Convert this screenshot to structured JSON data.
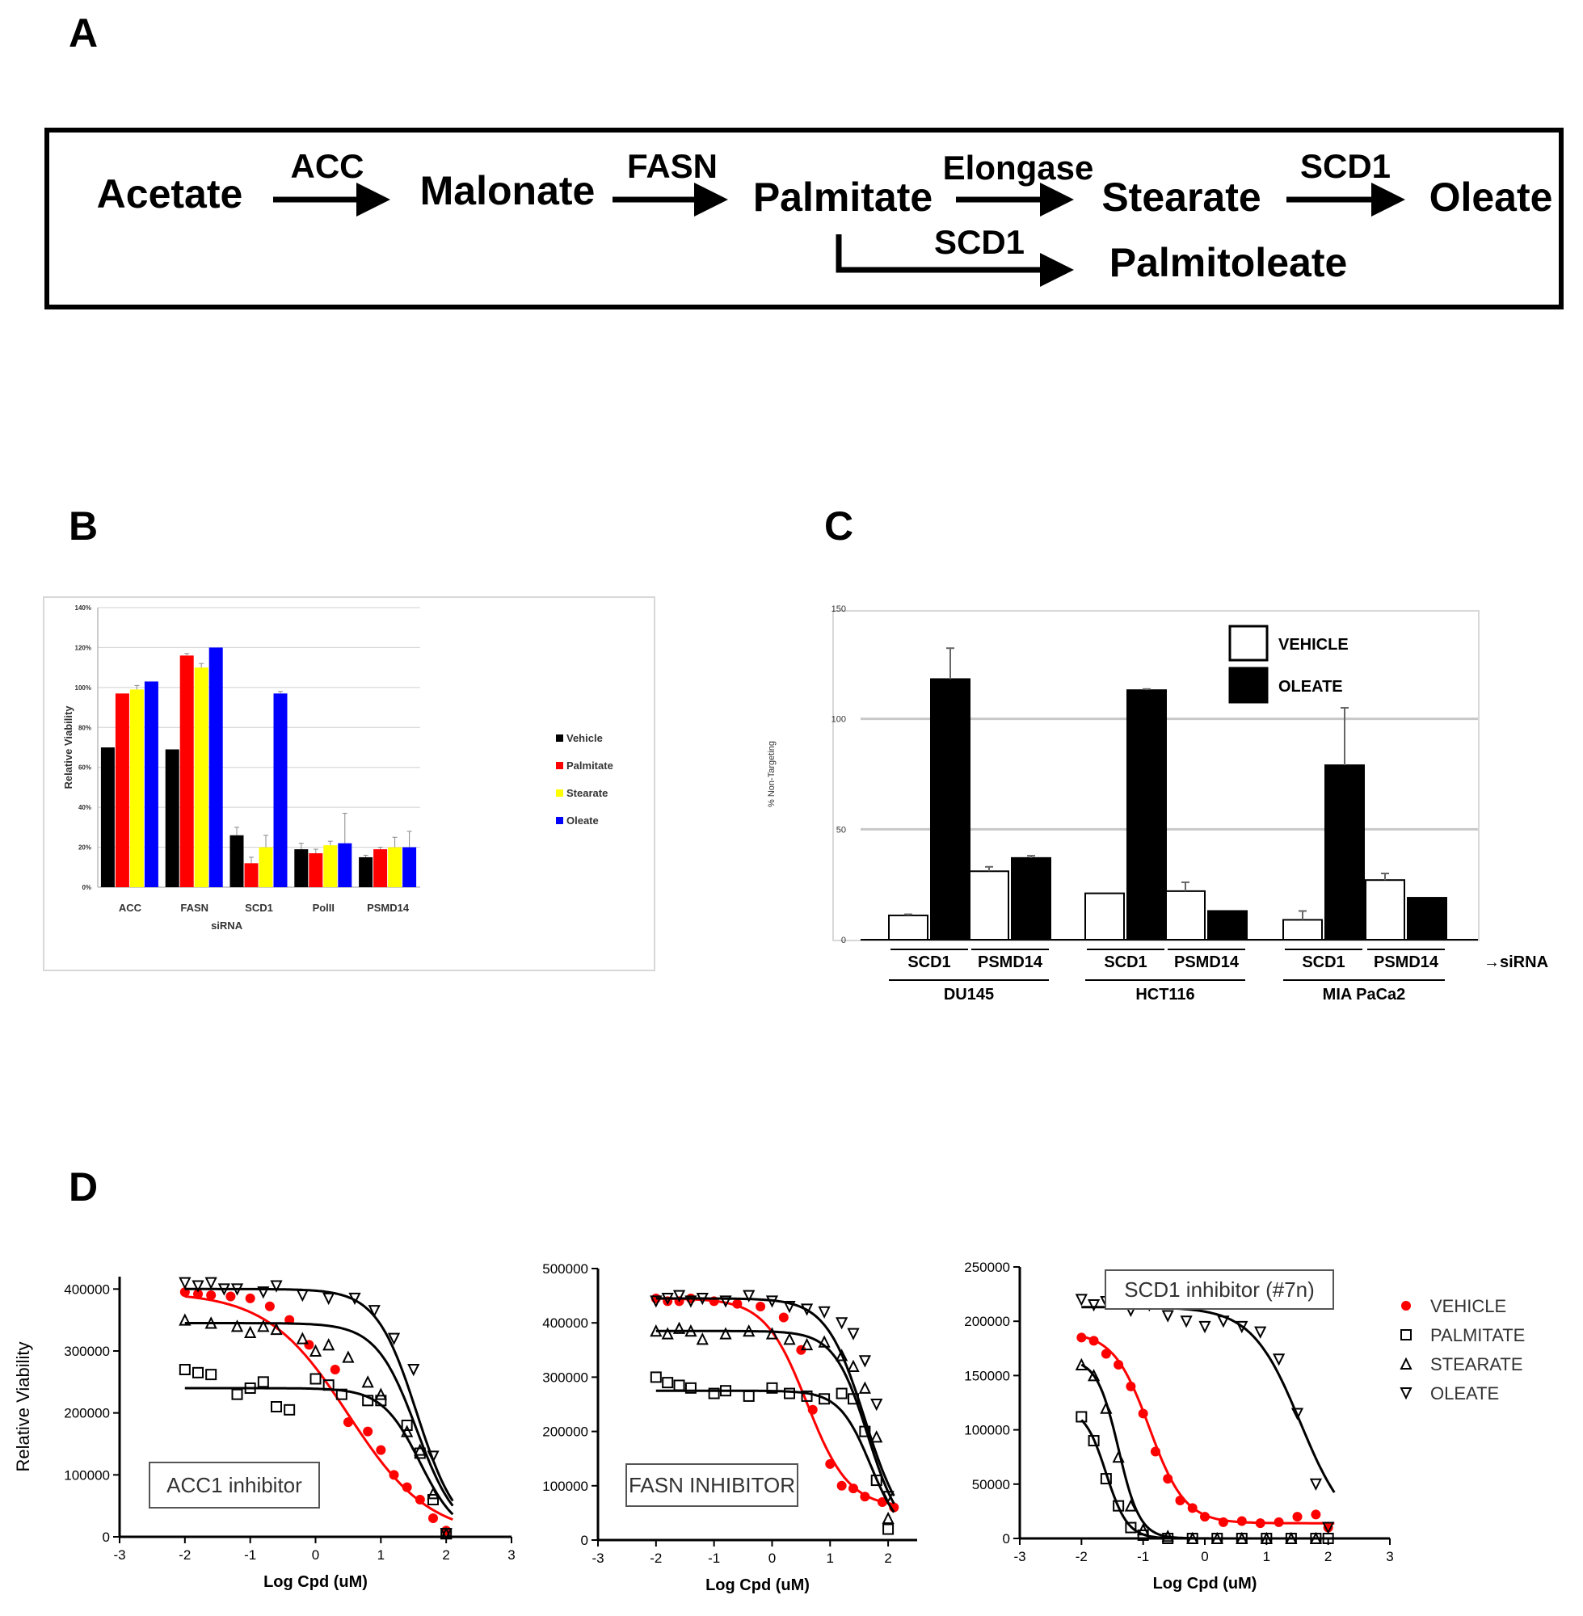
{
  "panel_labels": {
    "a": "A",
    "b": "B",
    "c": "C",
    "d": "D"
  },
  "pathway": {
    "substrates": [
      "Acetate",
      "Malonate",
      "Palmitate",
      "Stearate",
      "Oleate",
      "Palmitoleate"
    ],
    "enzymes": [
      "ACC",
      "FASN",
      "Elongase",
      "SCD1",
      "SCD1"
    ]
  },
  "chart_data": [
    {
      "panel": "B",
      "type": "bar",
      "xlabel": "siRNA",
      "ylabel": "Relative Viability",
      "ylim": [
        0,
        140
      ],
      "yticks": [
        "0%",
        "20%",
        "40%",
        "60%",
        "80%",
        "100%",
        "120%",
        "140%"
      ],
      "categories": [
        "ACC",
        "FASN",
        "SCD1",
        "PolII",
        "PSMD14"
      ],
      "legend_position": "right",
      "series": [
        {
          "name": "Vehicle",
          "color": "#000000",
          "values": [
            70,
            69,
            26,
            19,
            15
          ],
          "errors": [
            0,
            0,
            4,
            3,
            1
          ]
        },
        {
          "name": "Palmitate",
          "color": "#ff0000",
          "values": [
            97,
            116,
            12,
            17,
            19
          ],
          "errors": [
            0,
            1,
            3,
            2,
            1
          ]
        },
        {
          "name": "Stearate",
          "color": "#ffff00",
          "values": [
            99,
            110,
            20,
            21,
            20
          ],
          "errors": [
            2,
            2,
            6,
            2,
            5
          ]
        },
        {
          "name": "Oleate",
          "color": "#0000ff",
          "values": [
            103,
            120,
            97,
            22,
            20
          ],
          "errors": [
            0,
            0,
            1,
            15,
            8
          ]
        }
      ]
    },
    {
      "panel": "C",
      "type": "bar",
      "ylabel": "% Non-Targeting",
      "ylim": [
        0,
        150
      ],
      "yticks": [
        "0",
        "50",
        "100",
        "150"
      ],
      "sirna_labels": [
        "SCD1",
        "PSMD14",
        "SCD1",
        "PSMD14",
        "SCD1",
        "PSMD14"
      ],
      "sirna_arrow_label": "→siRNA",
      "cell_lines": [
        "DU145",
        "HCT116",
        "MIA PaCa2"
      ],
      "legend_position": "top-right",
      "series": [
        {
          "name": "VEHICLE",
          "color": "#ffffff",
          "values": [
            11,
            31,
            21,
            22,
            9,
            27
          ],
          "errors": [
            0.5,
            2,
            0,
            4,
            4,
            3
          ]
        },
        {
          "name": "OLEATE",
          "color": "#000000",
          "values": [
            118,
            37,
            113,
            13,
            79,
            19
          ],
          "errors": [
            14,
            1,
            0.5,
            0,
            26,
            0
          ]
        }
      ]
    },
    {
      "panel": "D1",
      "type": "scatter",
      "annotation": "ACC1 inhibitor",
      "xlabel": "Log Cpd (uM)",
      "ylabel": "Relative Viability",
      "xlim": [
        -3,
        3
      ],
      "ylim": [
        0,
        420000
      ],
      "xticks": [
        "-3",
        "-2",
        "-1",
        "0",
        "1",
        "2",
        "3"
      ],
      "yticks": [
        "0",
        "100000",
        "200000",
        "300000",
        "400000"
      ],
      "series": [
        {
          "name": "VEHICLE",
          "color": "#ff0000",
          "marker": "filled-circle",
          "x": [
            -2,
            -1.8,
            -1.6,
            -1.3,
            -1,
            -0.7,
            -0.4,
            -0.1,
            0.3,
            0.5,
            0.8,
            1.0,
            1.2,
            1.4,
            1.6,
            1.8,
            2.0
          ],
          "y": [
            395000,
            392000,
            390000,
            388000,
            385000,
            372000,
            350000,
            310000,
            270000,
            185000,
            170000,
            140000,
            100000,
            80000,
            60000,
            30000,
            10000
          ],
          "fit": {
            "top": 395000,
            "bottom": 0,
            "logEC50": 0.5,
            "hill": -0.7
          }
        },
        {
          "name": "PALMITATE",
          "color": "#000000",
          "marker": "open-square",
          "x": [
            -2,
            -1.8,
            -1.6,
            -1.2,
            -1.0,
            -0.8,
            -0.6,
            -0.4,
            0,
            0.2,
            0.4,
            0.8,
            1.0,
            1.4,
            1.6,
            1.8,
            2.0
          ],
          "y": [
            270000,
            265000,
            262000,
            230000,
            240000,
            250000,
            210000,
            205000,
            255000,
            245000,
            230000,
            220000,
            220000,
            180000,
            135000,
            60000,
            5000
          ],
          "fit": {
            "top": 240000,
            "bottom": 0,
            "logEC50": 1.6,
            "hill": -1.5
          }
        },
        {
          "name": "STEARATE",
          "color": "#000000",
          "marker": "open-triangle",
          "x": [
            -2,
            -1.6,
            -1.2,
            -1.0,
            -0.8,
            -0.6,
            -0.2,
            0,
            0.2,
            0.5,
            0.8,
            1.0,
            1.4,
            1.6,
            1.8,
            2.0
          ],
          "y": [
            350000,
            345000,
            340000,
            330000,
            340000,
            335000,
            320000,
            300000,
            310000,
            290000,
            250000,
            230000,
            170000,
            140000,
            70000,
            5000
          ],
          "fit": {
            "top": 345000,
            "bottom": 0,
            "logEC50": 1.55,
            "hill": -1.4
          }
        },
        {
          "name": "OLEATE",
          "color": "#000000",
          "marker": "open-invtriangle",
          "x": [
            -2,
            -1.8,
            -1.6,
            -1.4,
            -1.2,
            -0.8,
            -0.6,
            -0.2,
            0.2,
            0.6,
            0.9,
            1.2,
            1.5,
            1.8,
            2.0
          ],
          "y": [
            410000,
            405000,
            410000,
            400000,
            400000,
            395000,
            405000,
            390000,
            385000,
            385000,
            365000,
            320000,
            270000,
            130000,
            5000
          ],
          "fit": {
            "top": 400000,
            "bottom": 0,
            "logEC50": 1.55,
            "hill": -1.4
          }
        }
      ]
    },
    {
      "panel": "D2",
      "type": "scatter",
      "annotation": "FASN INHIBITOR",
      "xlabel": "Log Cpd (uM)",
      "xlim": [
        -3,
        2.5
      ],
      "ylim": [
        0,
        500000
      ],
      "xticks": [
        "-3",
        "-2",
        "-1",
        "0",
        "1",
        "2"
      ],
      "yticks": [
        "0",
        "100000",
        "200000",
        "300000",
        "400000",
        "500000"
      ],
      "series": [
        {
          "name": "VEHICLE",
          "color": "#ff0000",
          "marker": "filled-circle",
          "x": [
            -2,
            -1.8,
            -1.6,
            -1.4,
            -1.0,
            -0.6,
            -0.2,
            0.2,
            0.5,
            0.7,
            1.0,
            1.2,
            1.4,
            1.6,
            1.9,
            2.1
          ],
          "y": [
            445000,
            440000,
            440000,
            445000,
            440000,
            435000,
            430000,
            410000,
            350000,
            240000,
            140000,
            100000,
            95000,
            80000,
            70000,
            60000
          ],
          "fit": {
            "top": 445000,
            "bottom": 60000,
            "logEC50": 0.6,
            "hill": -1.2
          }
        },
        {
          "name": "PALMITATE",
          "color": "#000000",
          "marker": "open-square",
          "x": [
            -2,
            -1.8,
            -1.6,
            -1.4,
            -1.0,
            -0.8,
            -0.4,
            0,
            0.3,
            0.6,
            0.9,
            1.2,
            1.4,
            1.6,
            1.8,
            2.0
          ],
          "y": [
            300000,
            290000,
            285000,
            280000,
            270000,
            275000,
            265000,
            280000,
            270000,
            265000,
            260000,
            270000,
            260000,
            200000,
            110000,
            20000
          ],
          "fit": {
            "top": 275000,
            "bottom": 0,
            "logEC50": 1.7,
            "hill": -1.6
          }
        },
        {
          "name": "STEARATE",
          "color": "#000000",
          "marker": "open-triangle",
          "x": [
            -2,
            -1.8,
            -1.6,
            -1.4,
            -1.2,
            -0.8,
            -0.4,
            0,
            0.3,
            0.6,
            0.9,
            1.2,
            1.4,
            1.6,
            1.8,
            2.0
          ],
          "y": [
            385000,
            380000,
            390000,
            385000,
            370000,
            380000,
            385000,
            380000,
            370000,
            360000,
            365000,
            340000,
            320000,
            280000,
            190000,
            40000
          ],
          "fit": {
            "top": 385000,
            "bottom": 0,
            "logEC50": 1.65,
            "hill": -1.5
          }
        },
        {
          "name": "OLEATE",
          "color": "#000000",
          "marker": "open-invtriangle",
          "x": [
            -2,
            -1.8,
            -1.6,
            -1.4,
            -1.2,
            -0.8,
            -0.4,
            0,
            0.3,
            0.6,
            0.9,
            1.2,
            1.4,
            1.6,
            1.8,
            2.0
          ],
          "y": [
            440000,
            445000,
            450000,
            440000,
            445000,
            440000,
            450000,
            440000,
            430000,
            425000,
            420000,
            400000,
            380000,
            330000,
            250000,
            80000
          ],
          "fit": {
            "top": 445000,
            "bottom": 0,
            "logEC50": 1.6,
            "hill": -1.3
          }
        }
      ]
    },
    {
      "panel": "D3",
      "type": "scatter",
      "annotation": "SCD1 inhibitor (#7n)",
      "xlabel": "Log Cpd (uM)",
      "xlim": [
        -3,
        3
      ],
      "ylim": [
        0,
        250000
      ],
      "xticks": [
        "-3",
        "-2",
        "-1",
        "0",
        "1",
        "2",
        "3"
      ],
      "yticks": [
        "0",
        "50000",
        "100000",
        "150000",
        "200000",
        "250000"
      ],
      "legend_position": "right",
      "series": [
        {
          "name": "VEHICLE",
          "color": "#ff0000",
          "marker": "filled-circle",
          "x": [
            -2,
            -1.8,
            -1.6,
            -1.4,
            -1.2,
            -1.0,
            -0.8,
            -0.6,
            -0.4,
            -0.2,
            0,
            0.3,
            0.6,
            0.9,
            1.2,
            1.5,
            1.8,
            2.0
          ],
          "y": [
            185000,
            182000,
            170000,
            160000,
            140000,
            115000,
            80000,
            55000,
            35000,
            28000,
            20000,
            15000,
            16000,
            14000,
            15000,
            20000,
            22000,
            10000
          ],
          "fit": {
            "top": 190000,
            "bottom": 14000,
            "logEC50": -0.9,
            "hill": -1.5
          }
        },
        {
          "name": "PALMITATE",
          "color": "#000000",
          "marker": "open-square",
          "x": [
            -2,
            -1.8,
            -1.6,
            -1.4,
            -1.2,
            -1.0,
            -0.6,
            -0.2,
            0.2,
            0.6,
            1.0,
            1.4,
            1.8,
            2.0
          ],
          "y": [
            112000,
            90000,
            55000,
            30000,
            10000,
            3000,
            0,
            0,
            0,
            0,
            0,
            0,
            0,
            0
          ],
          "fit": {
            "top": 120000,
            "bottom": 0,
            "logEC50": -1.6,
            "hill": -2.5
          }
        },
        {
          "name": "STEARATE",
          "color": "#000000",
          "marker": "open-triangle",
          "x": [
            -2,
            -1.8,
            -1.6,
            -1.4,
            -1.2,
            -1.0,
            -0.6,
            -0.2,
            0.2,
            0.6,
            1.0,
            1.4,
            1.8
          ],
          "y": [
            160000,
            150000,
            120000,
            75000,
            30000,
            8000,
            2000,
            0,
            0,
            0,
            0,
            0,
            0
          ],
          "fit": {
            "top": 165000,
            "bottom": 0,
            "logEC50": -1.4,
            "hill": -2.5
          }
        },
        {
          "name": "OLEATE",
          "color": "#000000",
          "marker": "open-invtriangle",
          "x": [
            -2,
            -1.8,
            -1.6,
            -1.2,
            -0.9,
            -0.6,
            -0.3,
            0,
            0.3,
            0.6,
            0.9,
            1.2,
            1.5,
            1.8,
            2.0
          ],
          "y": [
            220000,
            215000,
            218000,
            210000,
            215000,
            205000,
            200000,
            195000,
            200000,
            195000,
            190000,
            165000,
            115000,
            50000,
            10000
          ],
          "fit": {
            "top": 213000,
            "bottom": 0,
            "logEC50": 1.55,
            "hill": -1.1
          }
        }
      ]
    }
  ]
}
